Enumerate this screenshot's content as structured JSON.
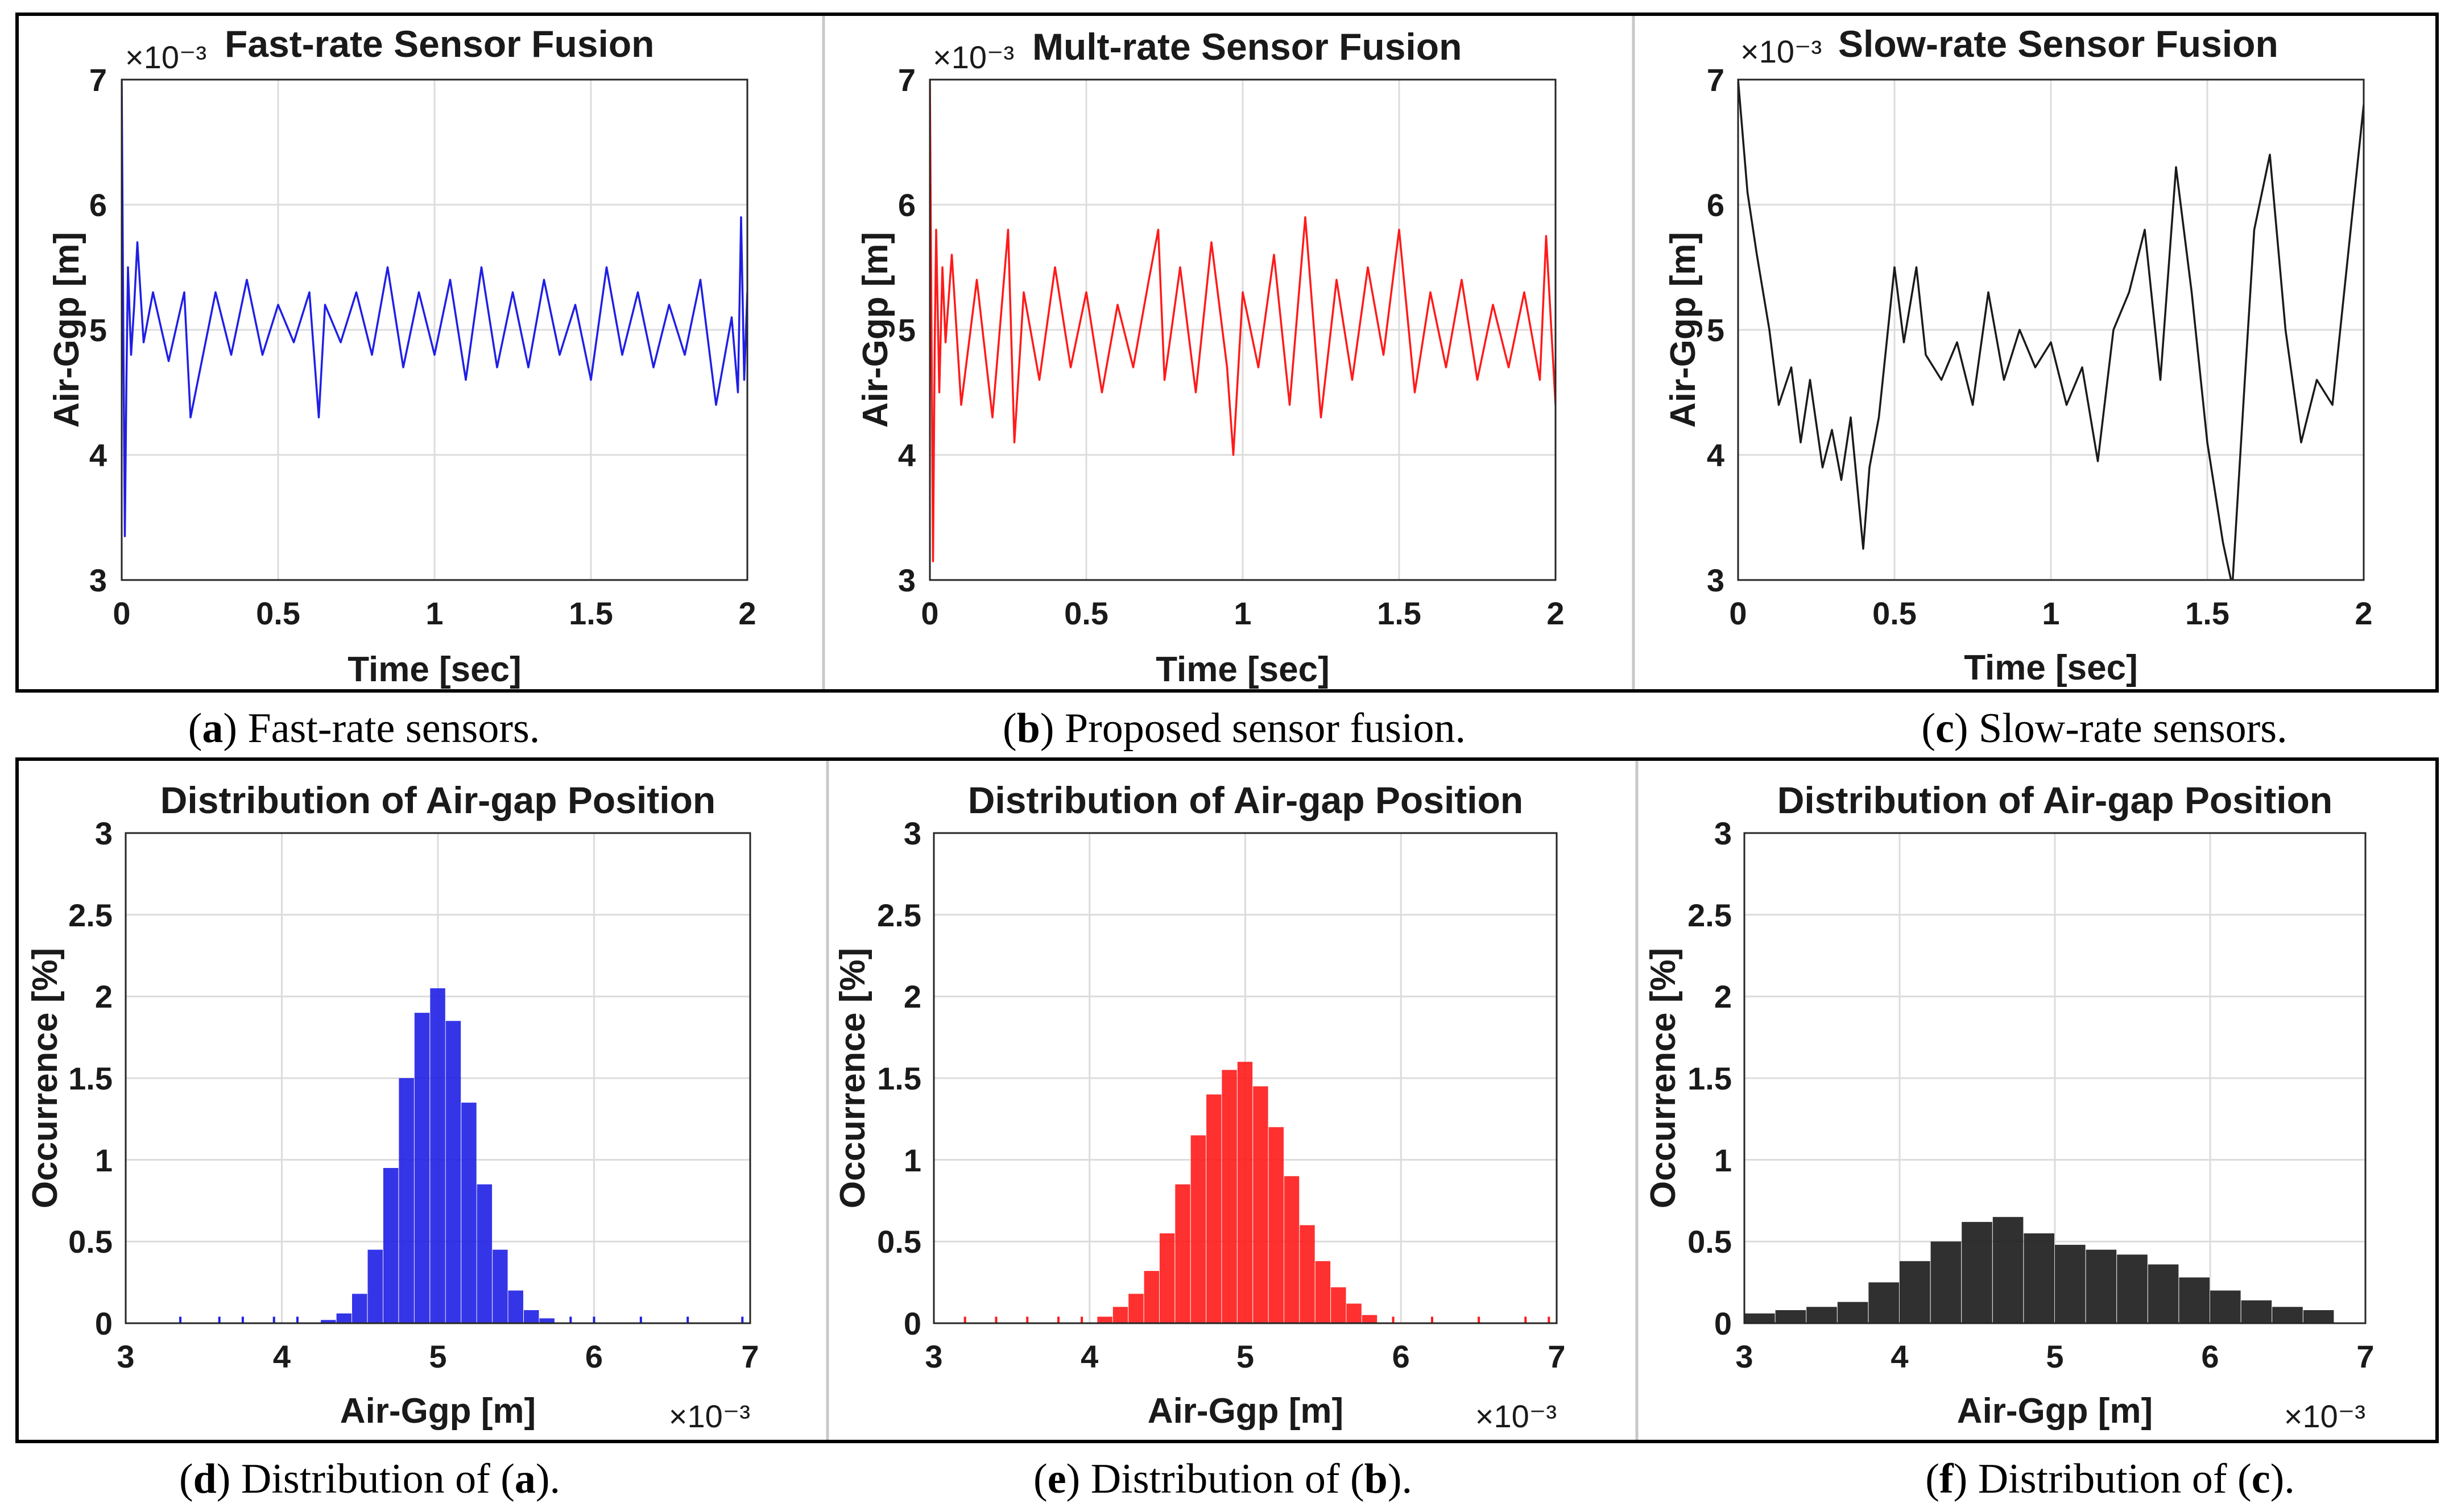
{
  "colors": {
    "fast": "#1f1fe6",
    "mult": "#ff1a1a",
    "slow": "#1a1a1a",
    "grid": "#dcdcdc"
  },
  "captions": [
    {
      "letter": "a",
      "pre": "(",
      "mid": ") Fast-rate sensors.",
      "ref": "",
      "end": ""
    },
    {
      "letter": "b",
      "pre": "(",
      "mid": ") Proposed sensor fusion.",
      "ref": "",
      "end": ""
    },
    {
      "letter": "c",
      "pre": "(",
      "mid": ") Slow-rate sensors.",
      "ref": "",
      "end": ""
    },
    {
      "letter": "d",
      "pre": "(",
      "mid": ") Distribution of (",
      "ref": "a",
      "end": ")."
    },
    {
      "letter": "e",
      "pre": "(",
      "mid": ") Distribution of (",
      "ref": "b",
      "end": ")."
    },
    {
      "letter": "f",
      "pre": "(",
      "mid": ") Distribution of (",
      "ref": "c",
      "end": ")."
    }
  ],
  "chart_data": [
    {
      "id": "a",
      "type": "line",
      "title": "Fast-rate Sensor Fusion",
      "xlabel": "Time [sec]",
      "ylabel": "Air-Ggp [m]",
      "multiplier": "×10⁻³",
      "xlim": [
        0,
        2
      ],
      "ylim": [
        3,
        7
      ],
      "xticks": [
        "0",
        "0.5",
        "1",
        "1.5",
        "2"
      ],
      "yticks": [
        "3",
        "4",
        "5",
        "6",
        "7"
      ],
      "color": "fast",
      "grid": true,
      "x": [
        0,
        0.005,
        0.01,
        0.015,
        0.02,
        0.03,
        0.04,
        0.05,
        0.07,
        0.1,
        0.15,
        0.2,
        0.22,
        0.3,
        0.35,
        0.4,
        0.45,
        0.5,
        0.55,
        0.6,
        0.63,
        0.65,
        0.7,
        0.75,
        0.8,
        0.85,
        0.9,
        0.95,
        1.0,
        1.05,
        1.1,
        1.15,
        1.2,
        1.25,
        1.3,
        1.35,
        1.4,
        1.45,
        1.5,
        1.55,
        1.6,
        1.65,
        1.7,
        1.75,
        1.8,
        1.85,
        1.9,
        1.95,
        1.97,
        1.98,
        1.99,
        2.0
      ],
      "values": [
        7.0,
        5.0,
        3.35,
        4.6,
        5.5,
        4.8,
        5.2,
        5.7,
        4.9,
        5.3,
        4.75,
        5.3,
        4.3,
        5.3,
        4.8,
        5.4,
        4.8,
        5.2,
        4.9,
        5.3,
        4.3,
        5.2,
        4.9,
        5.3,
        4.8,
        5.5,
        4.7,
        5.3,
        4.8,
        5.4,
        4.6,
        5.5,
        4.7,
        5.3,
        4.7,
        5.4,
        4.8,
        5.2,
        4.6,
        5.5,
        4.8,
        5.3,
        4.7,
        5.2,
        4.8,
        5.4,
        4.4,
        5.1,
        4.5,
        5.9,
        4.6,
        5.3
      ]
    },
    {
      "id": "b",
      "type": "line",
      "title": "Mult-rate Sensor Fusion",
      "xlabel": "Time [sec]",
      "ylabel": "Air-Ggp [m]",
      "multiplier": "×10⁻³",
      "xlim": [
        0,
        2
      ],
      "ylim": [
        3,
        7
      ],
      "xticks": [
        "0",
        "0.5",
        "1",
        "1.5",
        "2"
      ],
      "yticks": [
        "3",
        "4",
        "5",
        "6",
        "7"
      ],
      "color": "mult",
      "grid": true,
      "x": [
        0,
        0.005,
        0.01,
        0.015,
        0.02,
        0.03,
        0.04,
        0.05,
        0.07,
        0.1,
        0.15,
        0.2,
        0.25,
        0.27,
        0.3,
        0.35,
        0.4,
        0.45,
        0.5,
        0.55,
        0.6,
        0.65,
        0.7,
        0.73,
        0.75,
        0.8,
        0.85,
        0.9,
        0.95,
        0.97,
        1.0,
        1.05,
        1.1,
        1.15,
        1.2,
        1.25,
        1.3,
        1.35,
        1.4,
        1.45,
        1.5,
        1.55,
        1.6,
        1.65,
        1.7,
        1.75,
        1.8,
        1.85,
        1.9,
        1.95,
        1.97,
        2.0
      ],
      "values": [
        7.0,
        5.0,
        3.15,
        4.8,
        5.8,
        4.5,
        5.5,
        4.9,
        5.6,
        4.4,
        5.4,
        4.3,
        5.8,
        4.1,
        5.3,
        4.6,
        5.5,
        4.7,
        5.3,
        4.5,
        5.2,
        4.7,
        5.4,
        5.8,
        4.6,
        5.5,
        4.5,
        5.7,
        4.7,
        4.0,
        5.3,
        4.7,
        5.6,
        4.4,
        5.9,
        4.3,
        5.4,
        4.6,
        5.5,
        4.8,
        5.8,
        4.5,
        5.3,
        4.7,
        5.4,
        4.6,
        5.2,
        4.7,
        5.3,
        4.6,
        5.75,
        4.4
      ]
    },
    {
      "id": "c",
      "type": "line",
      "title": "Slow-rate Sensor Fusion",
      "xlabel": "Time [sec]",
      "ylabel": "Air-Ggp [m]",
      "multiplier": "×10⁻³",
      "xlim": [
        0,
        2
      ],
      "ylim": [
        3,
        7
      ],
      "xticks": [
        "0",
        "0.5",
        "1",
        "1.5",
        "2"
      ],
      "yticks": [
        "3",
        "4",
        "5",
        "6",
        "7"
      ],
      "color": "slow",
      "grid": true,
      "x": [
        0,
        0.03,
        0.06,
        0.1,
        0.13,
        0.17,
        0.2,
        0.23,
        0.27,
        0.3,
        0.33,
        0.36,
        0.4,
        0.42,
        0.45,
        0.5,
        0.53,
        0.57,
        0.6,
        0.65,
        0.7,
        0.75,
        0.8,
        0.85,
        0.9,
        0.95,
        1.0,
        1.05,
        1.1,
        1.15,
        1.2,
        1.25,
        1.3,
        1.35,
        1.4,
        1.45,
        1.5,
        1.55,
        1.58,
        1.62,
        1.65,
        1.7,
        1.75,
        1.8,
        1.85,
        1.9,
        1.95,
        2.0
      ],
      "values": [
        7.0,
        6.1,
        5.6,
        5.0,
        4.4,
        4.7,
        4.1,
        4.6,
        3.9,
        4.2,
        3.8,
        4.3,
        3.25,
        3.9,
        4.3,
        5.5,
        4.9,
        5.5,
        4.8,
        4.6,
        4.9,
        4.4,
        5.3,
        4.6,
        5.0,
        4.7,
        4.9,
        4.4,
        4.7,
        3.95,
        5.0,
        5.3,
        5.8,
        4.6,
        6.3,
        5.3,
        4.1,
        3.3,
        2.95,
        4.6,
        5.8,
        6.4,
        5.0,
        4.1,
        4.6,
        4.4,
        5.6,
        6.8
      ]
    },
    {
      "id": "d",
      "type": "histogram",
      "title": "Distribution of Air-gap Position",
      "xlabel": "Air-Ggp [m]",
      "ylabel": "Occurrence [%]",
      "multiplier": "×10⁻³",
      "xlim": [
        3,
        7
      ],
      "ylim": [
        0,
        3
      ],
      "xticks": [
        "3",
        "4",
        "5",
        "6",
        "7"
      ],
      "yticks": [
        "0",
        "0.5",
        "1",
        "1.5",
        "2",
        "2.5",
        "3"
      ],
      "color": "fast",
      "grid": true,
      "centers": [
        4.3,
        4.4,
        4.5,
        4.6,
        4.7,
        4.8,
        4.9,
        5.0,
        5.1,
        5.2,
        5.3,
        5.4,
        5.5,
        5.6,
        5.7
      ],
      "values": [
        0.02,
        0.06,
        0.18,
        0.45,
        0.95,
        1.5,
        1.9,
        2.05,
        1.85,
        1.35,
        0.85,
        0.45,
        0.2,
        0.08,
        0.03
      ],
      "sparse_x": [
        3.35,
        3.6,
        3.75,
        3.95,
        4.1,
        5.85,
        6.0,
        6.3,
        6.6,
        6.95
      ],
      "sparse_y": 0.04
    },
    {
      "id": "e",
      "type": "histogram",
      "title": "Distribution of Air-gap Position",
      "xlabel": "Air-Ggp [m]",
      "ylabel": "Occurrence [%]",
      "multiplier": "×10⁻³",
      "xlim": [
        3,
        7
      ],
      "ylim": [
        0,
        3
      ],
      "xticks": [
        "3",
        "4",
        "5",
        "6",
        "7"
      ],
      "yticks": [
        "0",
        "0.5",
        "1",
        "1.5",
        "2",
        "2.5",
        "3"
      ],
      "color": "mult",
      "grid": true,
      "centers": [
        4.1,
        4.2,
        4.3,
        4.4,
        4.5,
        4.6,
        4.7,
        4.8,
        4.9,
        5.0,
        5.1,
        5.2,
        5.3,
        5.4,
        5.5,
        5.6,
        5.7,
        5.8
      ],
      "values": [
        0.04,
        0.1,
        0.18,
        0.32,
        0.55,
        0.85,
        1.15,
        1.4,
        1.55,
        1.6,
        1.45,
        1.2,
        0.9,
        0.6,
        0.38,
        0.22,
        0.12,
        0.05
      ],
      "sparse_x": [
        3.2,
        3.4,
        3.6,
        3.8,
        3.95,
        5.95,
        6.2,
        6.5,
        6.8,
        6.95
      ],
      "sparse_y": 0.04
    },
    {
      "id": "f",
      "type": "histogram",
      "title": "Distribution of Air-gap Position",
      "xlabel": "Air-Ggp [m]",
      "ylabel": "Occurrence [%]",
      "multiplier": "×10⁻³",
      "xlim": [
        3,
        7
      ],
      "ylim": [
        0,
        3
      ],
      "xticks": [
        "3",
        "4",
        "5",
        "6",
        "7"
      ],
      "yticks": [
        "0",
        "0.5",
        "1",
        "1.5",
        "2",
        "2.5",
        "3"
      ],
      "color": "slow",
      "grid": true,
      "centers": [
        3.1,
        3.3,
        3.5,
        3.7,
        3.9,
        4.1,
        4.3,
        4.5,
        4.7,
        4.9,
        5.1,
        5.3,
        5.5,
        5.7,
        5.9,
        6.1,
        6.3,
        6.5,
        6.7
      ],
      "values": [
        0.06,
        0.08,
        0.1,
        0.13,
        0.25,
        0.38,
        0.5,
        0.62,
        0.65,
        0.55,
        0.48,
        0.45,
        0.42,
        0.36,
        0.28,
        0.2,
        0.14,
        0.1,
        0.08
      ],
      "sparse_x": [],
      "sparse_y": 0.0
    }
  ]
}
